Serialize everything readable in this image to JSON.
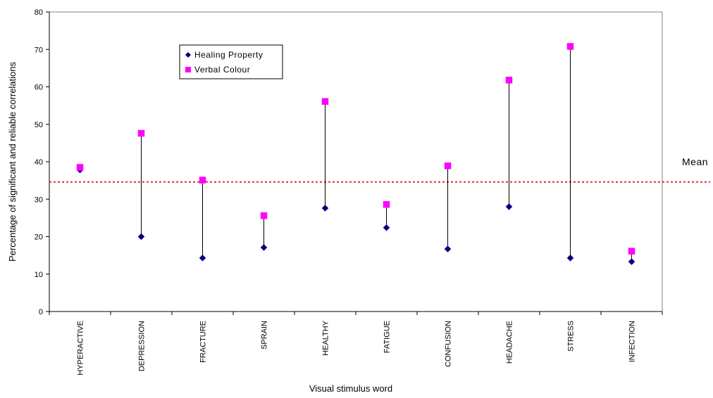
{
  "chart_data": {
    "type": "scatter",
    "categories": [
      "HYPERACTIVE",
      "DEPRESSION",
      "FRACTURE",
      "SPRAIN",
      "HEALTHY",
      "FATIGUE",
      "CONFUSION",
      "HEADACHE",
      "STRESS",
      "INFECTION"
    ],
    "series": [
      {
        "name": "Healing Property",
        "marker": "diamond",
        "color": "#000080",
        "values": [
          37.8,
          20,
          14.3,
          17.1,
          27.6,
          22.4,
          16.7,
          28,
          14.3,
          13.3
        ]
      },
      {
        "name": "Verbal Colour",
        "marker": "square",
        "color": "#ff00ff",
        "values": [
          38.5,
          47.6,
          35.1,
          25.6,
          56.1,
          28.6,
          38.9,
          61.8,
          70.8,
          16.1
        ]
      }
    ],
    "connectors": "vertical line from Healing Property to Verbal Colour per category",
    "mean": {
      "value": 34.6,
      "label": "Mean",
      "color": "#cc0000",
      "style": "dotted"
    },
    "xlabel": "Visual stimulus word",
    "ylabel": "Percentage of significant and reliable correlations",
    "ylim": [
      0,
      80
    ],
    "yticks": [
      0,
      10,
      20,
      30,
      40,
      50,
      60,
      70,
      80
    ],
    "grid": false,
    "legend_position": "top-left"
  }
}
